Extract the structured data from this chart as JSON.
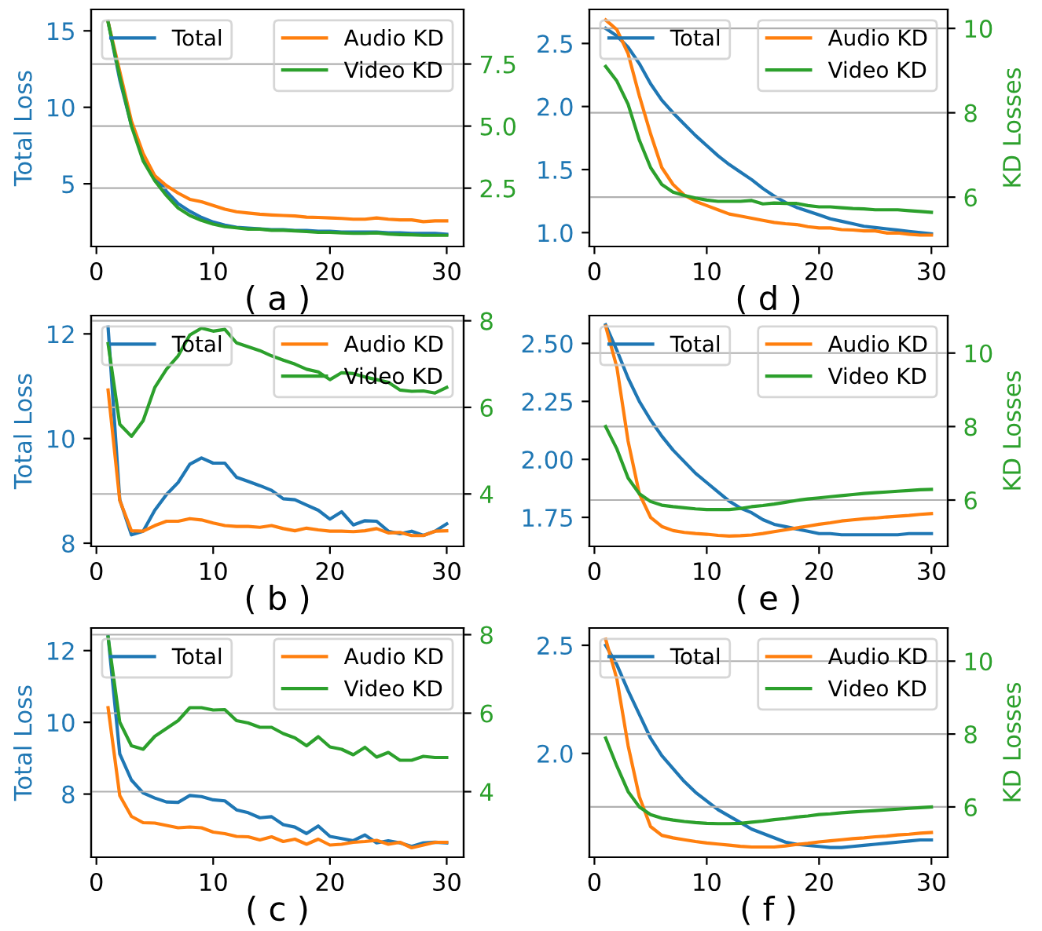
{
  "chart_data": [
    {
      "type": "line",
      "xlabel": "( a )",
      "ylabel": "Total Loss",
      "x": [
        1,
        2,
        3,
        4,
        5,
        6,
        7,
        8,
        9,
        10,
        11,
        12,
        13,
        14,
        15,
        16,
        17,
        18,
        19,
        20,
        21,
        22,
        23,
        24,
        25,
        26,
        27,
        28,
        29,
        30
      ],
      "xlim": [
        -0.45,
        31.45
      ],
      "xticks": [
        0,
        10,
        20,
        30
      ],
      "ylim": [
        0.9,
        16.4
      ],
      "yticks": [
        5,
        10,
        15
      ],
      "y2lim": [
        0.15,
        9.7
      ],
      "y2ticks": [
        2.5,
        {
          "value": 5,
          "label": "5.0"
        },
        7.5
      ],
      "grid": "y2",
      "legend": "top",
      "series": [
        {
          "name": "Total",
          "color": "#1f77b4",
          "values": [
            15.6,
            11.8,
            8.8,
            6.8,
            5.5,
            4.5,
            3.7,
            3.2,
            2.8,
            2.5,
            2.3,
            2.15,
            2.1,
            2.05,
            2.0,
            2.0,
            1.95,
            1.95,
            1.9,
            1.9,
            1.85,
            1.85,
            1.85,
            1.85,
            1.8,
            1.8,
            1.75,
            1.75,
            1.75,
            1.7
          ]
        },
        {
          "name": "Audio KD",
          "color": "#ff7f0e",
          "axis": "y2",
          "values": [
            9.2,
            7.2,
            5.2,
            3.9,
            3.0,
            2.6,
            2.3,
            2.05,
            1.95,
            1.8,
            1.65,
            1.55,
            1.5,
            1.45,
            1.42,
            1.4,
            1.38,
            1.33,
            1.32,
            1.3,
            1.28,
            1.25,
            1.25,
            1.3,
            1.25,
            1.22,
            1.22,
            1.15,
            1.18,
            1.18
          ]
        },
        {
          "name": "Video KD",
          "color": "#2ca02c",
          "axis": "y2",
          "values": [
            9.2,
            7.0,
            5.0,
            3.6,
            2.8,
            2.2,
            1.7,
            1.4,
            1.2,
            1.05,
            0.95,
            0.9,
            0.85,
            0.85,
            0.8,
            0.8,
            0.78,
            0.75,
            0.72,
            0.72,
            0.7,
            0.68,
            0.68,
            0.7,
            0.65,
            0.63,
            0.62,
            0.6,
            0.6,
            0.6
          ]
        }
      ]
    },
    {
      "type": "line",
      "xlabel": "( d )",
      "y2label": "KD Losses",
      "x": [
        1,
        2,
        3,
        4,
        5,
        6,
        7,
        8,
        9,
        10,
        11,
        12,
        13,
        14,
        15,
        16,
        17,
        18,
        19,
        20,
        21,
        22,
        23,
        24,
        25,
        26,
        27,
        28,
        29,
        30
      ],
      "xlim": [
        -0.45,
        31.45
      ],
      "xticks": [
        0,
        10,
        20,
        30
      ],
      "ylim": [
        0.89,
        2.77
      ],
      "yticks": [
        {
          "value": 1,
          "label": "1.0"
        },
        1.5,
        {
          "value": 2,
          "label": "2.0"
        },
        2.5
      ],
      "y2lim": [
        4.83,
        10.45
      ],
      "y2ticks": [
        6,
        8,
        10
      ],
      "grid": "y2",
      "legend": "top",
      "series": [
        {
          "name": "Total",
          "color": "#1f77b4",
          "values": [
            2.62,
            2.56,
            2.47,
            2.34,
            2.18,
            2.05,
            1.95,
            1.86,
            1.77,
            1.69,
            1.61,
            1.54,
            1.48,
            1.42,
            1.35,
            1.29,
            1.24,
            1.2,
            1.17,
            1.14,
            1.11,
            1.09,
            1.07,
            1.05,
            1.04,
            1.03,
            1.02,
            1.01,
            1.0,
            0.99
          ]
        },
        {
          "name": "Audio KD",
          "color": "#ff7f0e",
          "axis": "y2",
          "values": [
            10.2,
            9.97,
            9.4,
            8.4,
            7.5,
            6.7,
            6.3,
            6.05,
            5.9,
            5.8,
            5.7,
            5.6,
            5.55,
            5.5,
            5.45,
            5.4,
            5.37,
            5.35,
            5.3,
            5.27,
            5.27,
            5.23,
            5.22,
            5.2,
            5.2,
            5.15,
            5.15,
            5.12,
            5.1,
            5.1
          ]
        },
        {
          "name": "Video KD",
          "color": "#2ca02c",
          "axis": "y2",
          "values": [
            9.1,
            8.75,
            8.2,
            7.35,
            6.7,
            6.3,
            6.12,
            6.04,
            5.98,
            5.93,
            5.9,
            5.9,
            5.9,
            5.92,
            5.84,
            5.86,
            5.85,
            5.85,
            5.8,
            5.77,
            5.77,
            5.75,
            5.73,
            5.72,
            5.7,
            5.7,
            5.7,
            5.68,
            5.66,
            5.64
          ]
        }
      ]
    },
    {
      "type": "line",
      "xlabel": "( b )",
      "ylabel": "Total Loss",
      "x": [
        1,
        2,
        3,
        4,
        5,
        6,
        7,
        8,
        9,
        10,
        11,
        12,
        13,
        14,
        15,
        16,
        17,
        18,
        19,
        20,
        21,
        22,
        23,
        24,
        25,
        26,
        27,
        28,
        29,
        30
      ],
      "xlim": [
        -0.45,
        31.45
      ],
      "xticks": [
        0,
        10,
        20,
        30
      ],
      "ylim": [
        7.94,
        12.35
      ],
      "yticks": [
        8,
        10,
        12
      ],
      "y2lim": [
        2.79,
        8.12
      ],
      "y2ticks": [
        4,
        6,
        8
      ],
      "grid": "y2",
      "legend": "top",
      "series": [
        {
          "name": "Total",
          "color": "#1f77b4",
          "values": [
            12.13,
            8.83,
            8.16,
            8.23,
            8.63,
            8.93,
            9.16,
            9.51,
            9.63,
            9.53,
            9.53,
            9.26,
            9.18,
            9.1,
            9.01,
            8.85,
            8.83,
            8.73,
            8.63,
            8.46,
            8.6,
            8.35,
            8.43,
            8.42,
            8.23,
            8.18,
            8.23,
            8.15,
            8.23,
            8.37
          ]
        },
        {
          "name": "Audio KD",
          "color": "#ff7f0e",
          "axis": "y2",
          "values": [
            6.4,
            3.85,
            3.15,
            3.14,
            3.27,
            3.37,
            3.37,
            3.43,
            3.4,
            3.33,
            3.27,
            3.25,
            3.25,
            3.23,
            3.27,
            3.2,
            3.15,
            3.21,
            3.17,
            3.14,
            3.14,
            3.13,
            3.15,
            3.2,
            3.1,
            3.11,
            3.04,
            3.04,
            3.14,
            3.15
          ]
        },
        {
          "name": "Video KD",
          "color": "#2ca02c",
          "axis": "y2",
          "values": [
            7.47,
            5.61,
            5.33,
            5.69,
            6.46,
            6.88,
            7.19,
            7.67,
            7.83,
            7.76,
            7.8,
            7.49,
            7.4,
            7.31,
            7.19,
            7.09,
            7.0,
            6.88,
            6.82,
            6.64,
            6.8,
            6.78,
            6.7,
            6.64,
            6.58,
            6.4,
            6.37,
            6.38,
            6.33,
            6.46
          ]
        }
      ]
    },
    {
      "type": "line",
      "xlabel": "( e )",
      "y2label": "KD Losses",
      "x": [
        1,
        2,
        3,
        4,
        5,
        6,
        7,
        8,
        9,
        10,
        11,
        12,
        13,
        14,
        15,
        16,
        17,
        18,
        19,
        20,
        21,
        22,
        23,
        24,
        25,
        26,
        27,
        28,
        29,
        30
      ],
      "xlim": [
        -0.45,
        31.45
      ],
      "xticks": [
        0,
        10,
        20,
        30
      ],
      "ylim": [
        1.625,
        2.62
      ],
      "yticks": [
        1.75,
        {
          "value": 2,
          "label": "2.00"
        },
        2.25,
        {
          "value": 2.5,
          "label": "2.50"
        }
      ],
      "y2lim": [
        4.74,
        11.02
      ],
      "y2ticks": [
        6,
        8,
        10
      ],
      "grid": "y2",
      "legend": "top",
      "series": [
        {
          "name": "Total",
          "color": "#1f77b4",
          "values": [
            2.58,
            2.47,
            2.35,
            2.25,
            2.17,
            2.1,
            2.04,
            1.99,
            1.94,
            1.9,
            1.86,
            1.82,
            1.79,
            1.77,
            1.74,
            1.72,
            1.71,
            1.7,
            1.69,
            1.68,
            1.68,
            1.675,
            1.675,
            1.675,
            1.675,
            1.675,
            1.675,
            1.68,
            1.68,
            1.68
          ]
        },
        {
          "name": "Audio KD",
          "color": "#ff7f0e",
          "axis": "y2",
          "values": [
            10.73,
            9.61,
            7.6,
            6.17,
            5.53,
            5.28,
            5.17,
            5.12,
            5.09,
            5.07,
            5.04,
            5.02,
            5.03,
            5.05,
            5.09,
            5.14,
            5.19,
            5.24,
            5.29,
            5.34,
            5.38,
            5.43,
            5.46,
            5.49,
            5.51,
            5.54,
            5.56,
            5.58,
            5.61,
            5.63
          ]
        },
        {
          "name": "Video KD",
          "color": "#2ca02c",
          "axis": "y2",
          "values": [
            8.0,
            7.39,
            6.6,
            6.17,
            5.96,
            5.86,
            5.82,
            5.79,
            5.76,
            5.74,
            5.74,
            5.74,
            5.77,
            5.82,
            5.85,
            5.89,
            5.94,
            5.99,
            6.03,
            6.06,
            6.09,
            6.12,
            6.15,
            6.18,
            6.2,
            6.22,
            6.24,
            6.26,
            6.28,
            6.29
          ]
        }
      ]
    },
    {
      "type": "line",
      "xlabel": "( c )",
      "ylabel": "Total Loss",
      "x": [
        1,
        2,
        3,
        4,
        5,
        6,
        7,
        8,
        9,
        10,
        11,
        12,
        13,
        14,
        15,
        16,
        17,
        18,
        19,
        20,
        21,
        22,
        23,
        24,
        25,
        26,
        27,
        28,
        29,
        30
      ],
      "xlim": [
        -0.45,
        31.45
      ],
      "xticks": [
        0,
        10,
        20,
        30
      ],
      "ylim": [
        6.24,
        12.63
      ],
      "yticks": [
        8,
        10,
        12
      ],
      "y2lim": [
        2.33,
        8.17
      ],
      "y2ticks": [
        4,
        6,
        8
      ],
      "grid": "y2",
      "legend": "top",
      "series": [
        {
          "name": "Total",
          "color": "#1f77b4",
          "values": [
            12.4,
            9.12,
            8.39,
            8.03,
            7.89,
            7.78,
            7.77,
            7.96,
            7.93,
            7.84,
            7.81,
            7.56,
            7.48,
            7.34,
            7.37,
            7.15,
            7.08,
            6.9,
            7.11,
            6.82,
            6.76,
            6.7,
            6.86,
            6.64,
            6.7,
            6.64,
            6.54,
            6.64,
            6.66,
            6.64
          ]
        },
        {
          "name": "Audio KD",
          "color": "#ff7f0e",
          "axis": "y2",
          "values": [
            6.14,
            3.9,
            3.37,
            3.21,
            3.2,
            3.14,
            3.08,
            3.1,
            3.08,
            2.97,
            2.93,
            2.86,
            2.85,
            2.77,
            2.85,
            2.73,
            2.79,
            2.66,
            2.79,
            2.64,
            2.66,
            2.71,
            2.73,
            2.76,
            2.66,
            2.71,
            2.57,
            2.64,
            2.71,
            2.71
          ]
        },
        {
          "name": "Video KD",
          "color": "#2ca02c",
          "axis": "y2",
          "values": [
            7.94,
            5.77,
            5.17,
            5.08,
            5.41,
            5.61,
            5.81,
            6.14,
            6.14,
            6.08,
            6.09,
            5.81,
            5.75,
            5.64,
            5.64,
            5.48,
            5.37,
            5.17,
            5.4,
            5.14,
            5.08,
            4.94,
            5.13,
            4.88,
            5.0,
            4.8,
            4.8,
            4.9,
            4.87,
            4.87
          ]
        }
      ]
    },
    {
      "type": "line",
      "xlabel": "( f )",
      "y2label": "KD Losses",
      "x": [
        1,
        2,
        3,
        4,
        5,
        6,
        7,
        8,
        9,
        10,
        11,
        12,
        13,
        14,
        15,
        16,
        17,
        18,
        19,
        20,
        21,
        22,
        23,
        24,
        25,
        26,
        27,
        28,
        29,
        30
      ],
      "xlim": [
        -0.45,
        31.45
      ],
      "xticks": [
        0,
        10,
        20,
        30
      ],
      "ylim": [
        1.52,
        2.58
      ],
      "yticks": [
        {
          "value": 2,
          "label": "2.0"
        },
        2.5
      ],
      "y2lim": [
        4.62,
        10.91
      ],
      "y2ticks": [
        6,
        8,
        10
      ],
      "grid": "y2",
      "legend": "top",
      "series": [
        {
          "name": "Total",
          "color": "#1f77b4",
          "values": [
            2.5,
            2.41,
            2.29,
            2.18,
            2.07,
            1.99,
            1.93,
            1.87,
            1.82,
            1.78,
            1.74,
            1.71,
            1.68,
            1.65,
            1.63,
            1.61,
            1.59,
            1.58,
            1.575,
            1.57,
            1.565,
            1.565,
            1.57,
            1.575,
            1.58,
            1.585,
            1.59,
            1.595,
            1.6,
            1.6
          ]
        },
        {
          "name": "Audio KD",
          "color": "#ff7f0e",
          "axis": "y2",
          "values": [
            10.6,
            9.51,
            7.68,
            6.28,
            5.46,
            5.22,
            5.15,
            5.1,
            5.05,
            5.01,
            4.98,
            4.95,
            4.92,
            4.9,
            4.9,
            4.9,
            4.93,
            4.97,
            5.0,
            5.04,
            5.07,
            5.1,
            5.13,
            5.15,
            5.18,
            5.2,
            5.23,
            5.25,
            5.28,
            5.3
          ]
        },
        {
          "name": "Video KD",
          "color": "#2ca02c",
          "axis": "y2",
          "values": [
            7.89,
            7.12,
            6.42,
            6.0,
            5.79,
            5.69,
            5.64,
            5.6,
            5.57,
            5.55,
            5.54,
            5.54,
            5.55,
            5.58,
            5.61,
            5.65,
            5.68,
            5.72,
            5.75,
            5.79,
            5.81,
            5.84,
            5.86,
            5.88,
            5.9,
            5.92,
            5.94,
            5.96,
            5.98,
            6.0
          ]
        }
      ]
    }
  ]
}
